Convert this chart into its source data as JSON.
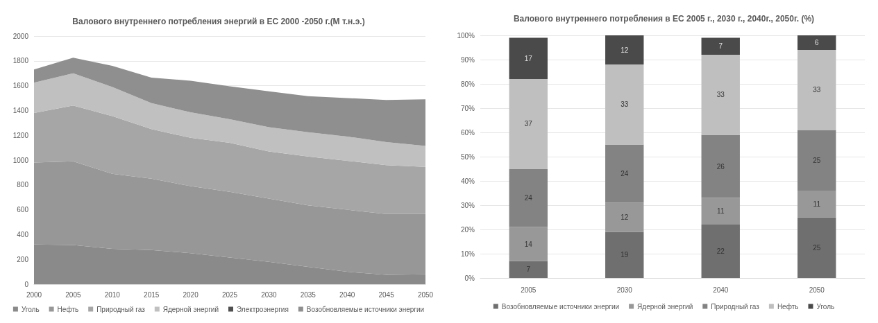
{
  "chart_data": [
    {
      "type": "area",
      "stacked": true,
      "title": "Валового внутреннего потребления энергий в ЕС 2000 -2050 г.(М т.н.э.)",
      "x": [
        2000,
        2005,
        2010,
        2015,
        2020,
        2025,
        2030,
        2035,
        2040,
        2045,
        2050
      ],
      "xlim": [
        2000,
        2050
      ],
      "xticks": [
        2000,
        2005,
        2010,
        2015,
        2020,
        2025,
        2030,
        2035,
        2040,
        2045,
        2050
      ],
      "ylim": [
        0,
        2000
      ],
      "yticks": [
        0,
        200,
        400,
        600,
        800,
        1000,
        1200,
        1400,
        1600,
        1800,
        2000
      ],
      "grid": "y",
      "legend": "bottom",
      "series": [
        {
          "name": "Уголь",
          "color": "#8a8a8a",
          "values": [
            320,
            315,
            285,
            275,
            250,
            215,
            180,
            140,
            100,
            75,
            80
          ]
        },
        {
          "name": "Нефть",
          "color": "#979797",
          "values": [
            660,
            675,
            605,
            575,
            540,
            530,
            510,
            495,
            500,
            490,
            485
          ]
        },
        {
          "name": "Природный газ",
          "color": "#a6a6a6",
          "values": [
            400,
            450,
            465,
            400,
            390,
            395,
            380,
            395,
            395,
            395,
            380
          ]
        },
        {
          "name": "Ядерной энергий",
          "color": "#c0c0c0",
          "values": [
            245,
            260,
            235,
            210,
            205,
            190,
            195,
            195,
            195,
            185,
            170
          ]
        },
        {
          "name": "Электроэнергия",
          "color": "#4f4f4f",
          "values": [
            null,
            null,
            null,
            null,
            null,
            null,
            null,
            null,
            null,
            null,
            null
          ]
        },
        {
          "name": "Возобновляемые источники энергии",
          "color": "#8f8f8f",
          "values": [
            105,
            125,
            170,
            205,
            255,
            265,
            290,
            290,
            310,
            340,
            375
          ]
        }
      ]
    },
    {
      "type": "bar",
      "stacked": true,
      "title": "Валового внутреннего потребления в ЕС 2005 г., 2030 г., 2040г., 2050г. (%)",
      "categories": [
        "2005",
        "2030",
        "2040",
        "2050"
      ],
      "ylim": [
        0,
        100
      ],
      "yticks": [
        {
          "value": 0,
          "label": "0%"
        },
        {
          "value": 10,
          "label": "10%"
        },
        {
          "value": 20,
          "label": "20%"
        },
        {
          "value": 30,
          "label": "30%"
        },
        {
          "value": 40,
          "label": "40%"
        },
        {
          "value": 50,
          "label": "50%"
        },
        {
          "value": 60,
          "label": "60%"
        },
        {
          "value": 70,
          "label": "70%"
        },
        {
          "value": 80,
          "label": "80%"
        },
        {
          "value": 90,
          "label": "90%"
        },
        {
          "value": 100,
          "label": "100%"
        }
      ],
      "grid": "y",
      "legend": "bottom",
      "data_labels": true,
      "series": [
        {
          "name": "Возобновляемые источники энергии",
          "color": "#6f6f6f",
          "values": [
            7,
            19,
            22,
            25
          ]
        },
        {
          "name": "Ядерной энергий",
          "color": "#989898",
          "values": [
            14,
            12,
            11,
            11
          ]
        },
        {
          "name": "Природный газ",
          "color": "#838383",
          "values": [
            24,
            24,
            26,
            25
          ]
        },
        {
          "name": "Нефть",
          "color": "#bfbfbf",
          "values": [
            37,
            33,
            33,
            33
          ]
        },
        {
          "name": "Уголь",
          "color": "#4a4a4a",
          "values": [
            17,
            12,
            7,
            6
          ]
        }
      ]
    }
  ]
}
